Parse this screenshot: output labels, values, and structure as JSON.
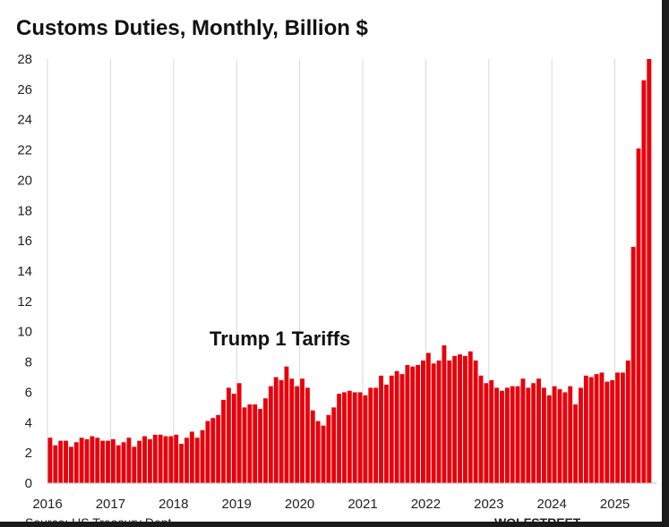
{
  "chart_data": {
    "type": "bar",
    "title": "Customs Duties, Monthly, Billion $",
    "xlabel": "",
    "ylabel": "",
    "ylim": [
      0,
      28
    ],
    "yticks": [
      0,
      2,
      4,
      6,
      8,
      10,
      12,
      14,
      16,
      18,
      20,
      22,
      24,
      26,
      28
    ],
    "xticks": [
      "2016",
      "2017",
      "2018",
      "2019",
      "2020",
      "2021",
      "2022",
      "2023",
      "2024",
      "2025"
    ],
    "grid": "vertical",
    "bar_color": "#e8000b",
    "annotation": "Trump 1 Tariffs",
    "series": [
      {
        "values": [
          3.0,
          2.5,
          2.8,
          2.8,
          2.4,
          2.7,
          3.0,
          2.9,
          3.1,
          3.0,
          2.8,
          2.8,
          2.9,
          2.5,
          2.7,
          3.0,
          2.4,
          2.8,
          3.1,
          2.9,
          3.2,
          3.2,
          3.1,
          3.1,
          3.2,
          2.6,
          3.0,
          3.4,
          3.0,
          3.5,
          4.1,
          4.3,
          4.5,
          5.5,
          6.3,
          5.9,
          6.6,
          5.0,
          5.2,
          5.2,
          4.9,
          5.6,
          6.4,
          7.0,
          6.8,
          7.7,
          6.9,
          6.4,
          6.9,
          6.3,
          4.8,
          4.1,
          3.8,
          4.5,
          5.0,
          5.9,
          6.0,
          6.1,
          6.0,
          6.0,
          5.8,
          6.3,
          6.3,
          7.1,
          6.5,
          7.1,
          7.4,
          7.2,
          7.8,
          7.7,
          7.8,
          8.1,
          8.6,
          7.9,
          8.1,
          9.1,
          8.1,
          8.4,
          8.5,
          8.4,
          8.7,
          8.1,
          7.1,
          6.6,
          6.8,
          6.3,
          6.1,
          6.3,
          6.4,
          6.4,
          6.9,
          6.3,
          6.6,
          6.9,
          6.3,
          5.8,
          6.4,
          6.2,
          6.0,
          6.4,
          5.2,
          6.3,
          7.1,
          7.0,
          7.2,
          7.3,
          6.7,
          6.8,
          7.3,
          7.3,
          8.1,
          15.6,
          22.1,
          26.6,
          28.0
        ]
      }
    ],
    "start": "2016-01"
  },
  "footer": {
    "source_partial": "Source: US Treasury Dept",
    "watermark_partial": "WOLFSTREET"
  }
}
